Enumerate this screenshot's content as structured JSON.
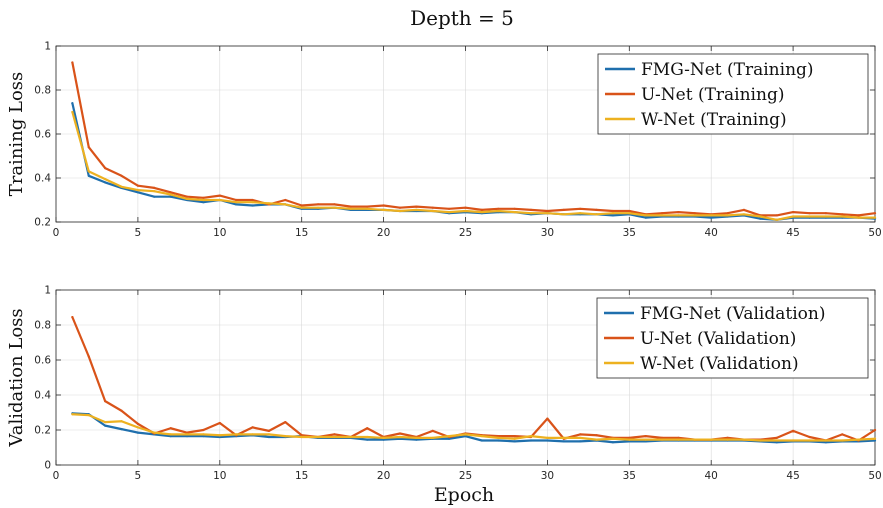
{
  "figure_title": "Depth = 5",
  "xlabel": "Epoch",
  "colors": {
    "blue": "#1f6fad",
    "orange": "#d95319",
    "yellow": "#edb120"
  },
  "chart_data": [
    {
      "type": "line",
      "ylabel": "Training Loss",
      "xlim": [
        0,
        50
      ],
      "ylim": [
        0.2,
        1
      ],
      "xticks": [
        0,
        5,
        10,
        15,
        20,
        25,
        30,
        35,
        40,
        45,
        50
      ],
      "yticks": [
        0.2,
        0.4,
        0.6,
        0.8,
        1
      ],
      "ytick_labels": [
        "0.2",
        "0.4",
        "0.6",
        "0.8",
        "1"
      ],
      "grid": true,
      "legend_position": "top-right",
      "x": [
        1,
        2,
        3,
        4,
        5,
        6,
        7,
        8,
        9,
        10,
        11,
        12,
        13,
        14,
        15,
        16,
        17,
        18,
        19,
        20,
        21,
        22,
        23,
        24,
        25,
        26,
        27,
        28,
        29,
        30,
        31,
        32,
        33,
        34,
        35,
        36,
        37,
        38,
        39,
        40,
        41,
        42,
        43,
        44,
        45,
        46,
        47,
        48,
        49,
        50
      ],
      "series": [
        {
          "name": "FMG-Net (Training)",
          "color": "#1f6fad",
          "values": [
            0.74,
            0.41,
            0.38,
            0.355,
            0.335,
            0.315,
            0.315,
            0.3,
            0.29,
            0.3,
            0.28,
            0.275,
            0.28,
            0.28,
            0.26,
            0.26,
            0.265,
            0.255,
            0.255,
            0.255,
            0.25,
            0.25,
            0.25,
            0.24,
            0.245,
            0.24,
            0.245,
            0.245,
            0.235,
            0.24,
            0.235,
            0.235,
            0.235,
            0.23,
            0.235,
            0.22,
            0.225,
            0.225,
            0.225,
            0.22,
            0.225,
            0.23,
            0.215,
            0.21,
            0.22,
            0.22,
            0.22,
            0.22,
            0.22,
            0.215
          ]
        },
        {
          "name": "U-Net (Training)",
          "color": "#d95319",
          "values": [
            0.925,
            0.54,
            0.445,
            0.41,
            0.365,
            0.355,
            0.335,
            0.315,
            0.31,
            0.32,
            0.3,
            0.3,
            0.28,
            0.3,
            0.275,
            0.28,
            0.28,
            0.27,
            0.27,
            0.275,
            0.265,
            0.27,
            0.265,
            0.26,
            0.265,
            0.255,
            0.26,
            0.26,
            0.255,
            0.25,
            0.255,
            0.26,
            0.255,
            0.25,
            0.25,
            0.235,
            0.24,
            0.245,
            0.24,
            0.235,
            0.24,
            0.255,
            0.23,
            0.23,
            0.245,
            0.24,
            0.24,
            0.235,
            0.23,
            0.24
          ]
        },
        {
          "name": "W-Net (Training)",
          "color": "#edb120",
          "values": [
            0.7,
            0.43,
            0.395,
            0.36,
            0.345,
            0.34,
            0.325,
            0.305,
            0.3,
            0.3,
            0.29,
            0.29,
            0.285,
            0.28,
            0.265,
            0.265,
            0.265,
            0.26,
            0.26,
            0.255,
            0.25,
            0.255,
            0.25,
            0.245,
            0.25,
            0.245,
            0.25,
            0.245,
            0.24,
            0.24,
            0.235,
            0.24,
            0.235,
            0.24,
            0.24,
            0.23,
            0.23,
            0.23,
            0.23,
            0.23,
            0.23,
            0.235,
            0.225,
            0.21,
            0.225,
            0.225,
            0.225,
            0.225,
            0.22,
            0.22
          ]
        }
      ]
    },
    {
      "type": "line",
      "ylabel": "Validation Loss",
      "xlim": [
        0,
        50
      ],
      "ylim": [
        0,
        1
      ],
      "xticks": [
        0,
        5,
        10,
        15,
        20,
        25,
        30,
        35,
        40,
        45,
        50
      ],
      "yticks": [
        0,
        0.2,
        0.4,
        0.6,
        0.8,
        1
      ],
      "ytick_labels": [
        "0",
        "0.2",
        "0.4",
        "0.6",
        "0.8",
        "1"
      ],
      "grid": true,
      "legend_position": "top-right",
      "x": [
        1,
        2,
        3,
        4,
        5,
        6,
        7,
        8,
        9,
        10,
        11,
        12,
        13,
        14,
        15,
        16,
        17,
        18,
        19,
        20,
        21,
        22,
        23,
        24,
        25,
        26,
        27,
        28,
        29,
        30,
        31,
        32,
        33,
        34,
        35,
        36,
        37,
        38,
        39,
        40,
        41,
        42,
        43,
        44,
        45,
        46,
        47,
        48,
        49,
        50
      ],
      "series": [
        {
          "name": "FMG-Net (Validation)",
          "color": "#1f6fad",
          "values": [
            0.295,
            0.29,
            0.225,
            0.205,
            0.185,
            0.175,
            0.165,
            0.165,
            0.165,
            0.16,
            0.165,
            0.17,
            0.16,
            0.16,
            0.165,
            0.155,
            0.155,
            0.155,
            0.145,
            0.145,
            0.15,
            0.145,
            0.15,
            0.15,
            0.165,
            0.14,
            0.14,
            0.135,
            0.14,
            0.14,
            0.135,
            0.135,
            0.14,
            0.13,
            0.135,
            0.135,
            0.14,
            0.14,
            0.14,
            0.14,
            0.14,
            0.14,
            0.135,
            0.13,
            0.135,
            0.135,
            0.13,
            0.135,
            0.135,
            0.14
          ]
        },
        {
          "name": "U-Net (Validation)",
          "color": "#d95319",
          "values": [
            0.845,
            0.62,
            0.365,
            0.31,
            0.235,
            0.18,
            0.21,
            0.185,
            0.2,
            0.24,
            0.17,
            0.215,
            0.195,
            0.245,
            0.17,
            0.16,
            0.175,
            0.16,
            0.21,
            0.16,
            0.18,
            0.16,
            0.195,
            0.16,
            0.18,
            0.17,
            0.165,
            0.165,
            0.16,
            0.265,
            0.15,
            0.175,
            0.17,
            0.155,
            0.155,
            0.165,
            0.155,
            0.155,
            0.145,
            0.145,
            0.155,
            0.145,
            0.145,
            0.155,
            0.195,
            0.16,
            0.14,
            0.175,
            0.14,
            0.2
          ]
        },
        {
          "name": "W-Net (Validation)",
          "color": "#edb120",
          "values": [
            0.29,
            0.285,
            0.245,
            0.25,
            0.215,
            0.185,
            0.175,
            0.175,
            0.175,
            0.17,
            0.175,
            0.175,
            0.175,
            0.165,
            0.16,
            0.16,
            0.16,
            0.16,
            0.16,
            0.155,
            0.16,
            0.155,
            0.155,
            0.165,
            0.175,
            0.165,
            0.155,
            0.15,
            0.165,
            0.155,
            0.155,
            0.155,
            0.145,
            0.15,
            0.145,
            0.145,
            0.145,
            0.145,
            0.145,
            0.145,
            0.145,
            0.145,
            0.14,
            0.14,
            0.14,
            0.14,
            0.14,
            0.14,
            0.145,
            0.15
          ]
        }
      ]
    }
  ]
}
